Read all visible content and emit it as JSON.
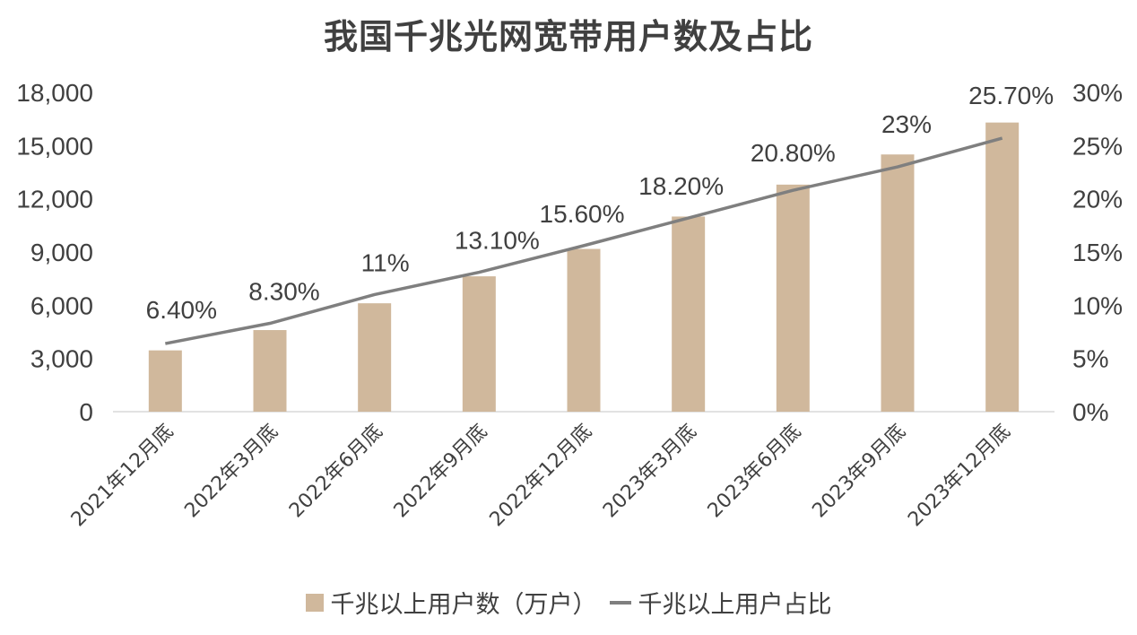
{
  "title": "我国千兆光网宽带用户数及占比",
  "colors": {
    "bar": "#d0b89c",
    "line": "#7f7f7f",
    "axis": "#d9d9d9",
    "text": "#404040"
  },
  "legend": {
    "bar_label": "千兆以上用户数（万户）",
    "line_label": "千兆以上用户占比"
  },
  "axes": {
    "left_ticks": [
      "0",
      "3,000",
      "6,000",
      "9,000",
      "12,000",
      "15,000",
      "18,000"
    ],
    "right_ticks": [
      "0%",
      "5%",
      "10%",
      "15%",
      "20%",
      "25%",
      "30%"
    ]
  },
  "chart_data": {
    "type": "bar",
    "title": "我国千兆光网宽带用户数及占比",
    "xlabel": "",
    "ylabel": "",
    "categories": [
      "2021年12月底",
      "2022年3月底",
      "2022年6月底",
      "2022年9月底",
      "2022年12月底",
      "2023年3月底",
      "2023年6月底",
      "2023年9月底",
      "2023年12月底"
    ],
    "series": [
      {
        "name": "千兆以上用户数（万户）",
        "type": "bar",
        "axis": "left",
        "values": [
          3456,
          4600,
          6111,
          7630,
          9175,
          11000,
          12800,
          14500,
          16300
        ]
      },
      {
        "name": "千兆以上用户占比",
        "type": "line",
        "axis": "right",
        "values": [
          6.4,
          8.3,
          11,
          13.1,
          15.6,
          18.2,
          20.8,
          23,
          25.7
        ],
        "labels": [
          "6.40%",
          "8.30%",
          "11%",
          "13.10%",
          "15.60%",
          "18.20%",
          "20.80%",
          "23%",
          "25.70%"
        ]
      }
    ],
    "ylim": [
      0,
      18000
    ],
    "y2lim": [
      0,
      30
    ],
    "grid": false,
    "legend_position": "bottom"
  }
}
